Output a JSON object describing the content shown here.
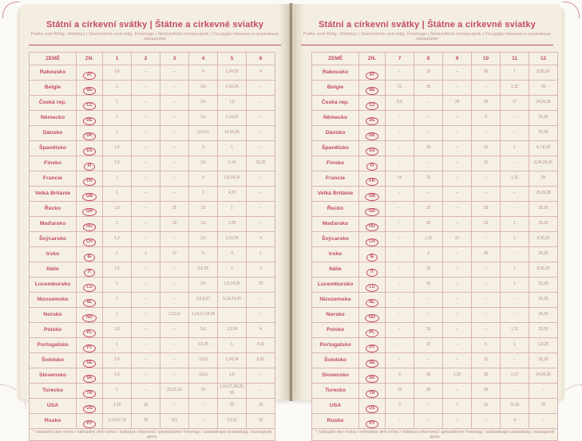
{
  "page": {
    "title": "Státní a církevní svátky | Štátne a cirkevné sviatky",
    "subtitle": "Public and Relig. Holidays | Gesetzliche und relig. Feiertage | Nemzetközi ünnepnapok | Государственные и церковные праздники",
    "footnote": "* náhradní den volna / náhradný deň voľna / holidays observed / gesetzlicher Feiertag / szabadnapi szabadság / выходной день"
  },
  "table_left": {
    "headers": [
      "ZEMĚ",
      "ZN.",
      "1",
      "2",
      "3",
      "4",
      "5",
      "6"
    ],
    "rows": [
      {
        "country": "Rakousko",
        "code": "AT",
        "values": [
          "1,6",
          "–",
          "–",
          "6",
          "1,14,25",
          "4"
        ]
      },
      {
        "country": "Belgie",
        "code": "BE",
        "values": [
          "1",
          "–",
          "–",
          "3,6",
          "1,14,25",
          "–"
        ]
      },
      {
        "country": "Česká rep.",
        "code": "CZ",
        "values": [
          "1",
          "–",
          "–",
          "3,6",
          "1,8",
          "–"
        ]
      },
      {
        "country": "Německo",
        "code": "DE",
        "values": [
          "1",
          "–",
          "–",
          "3,6",
          "1,14,25",
          "–"
        ]
      },
      {
        "country": "Dánsko",
        "code": "DK",
        "values": [
          "1",
          "–",
          "–",
          "2,3,5,6",
          "14,24,25",
          "–"
        ]
      },
      {
        "country": "Španělsko",
        "code": "ES",
        "values": [
          "1,6",
          "–",
          "–",
          "3",
          "1",
          "–"
        ]
      },
      {
        "country": "Finsko",
        "code": "FI",
        "values": [
          "1,6",
          "–",
          "–",
          "3,6",
          "1,14",
          "19,20"
        ]
      },
      {
        "country": "Francie",
        "code": "FR",
        "values": [
          "1",
          "–",
          "–",
          "6",
          "1,8,14,25",
          "–"
        ]
      },
      {
        "country": "Velká Británie",
        "code": "GB",
        "values": [
          "1",
          "–",
          "–",
          "3",
          "4,25",
          "–"
        ]
      },
      {
        "country": "Řecko",
        "code": "GR",
        "values": [
          "1,6",
          "–",
          "25",
          "13",
          "1",
          "–"
        ]
      },
      {
        "country": "Maďarsko",
        "code": "HU",
        "values": [
          "1",
          "–",
          "15",
          "3,6",
          "1,25",
          "–"
        ]
      },
      {
        "country": "Švýcarsko",
        "code": "CH",
        "values": [
          "1,2",
          "–",
          "–",
          "3,6",
          "1,14,25",
          "4"
        ]
      },
      {
        "country": "Irsko",
        "code": "IE",
        "values": [
          "1",
          "2",
          "17",
          "6",
          "4",
          "1"
        ]
      },
      {
        "country": "Itálie",
        "code": "IT",
        "values": [
          "1,6",
          "–",
          "–",
          "5,6,25",
          "1",
          "2"
        ]
      },
      {
        "country": "Lucembursko",
        "code": "LU",
        "values": [
          "1",
          "–",
          "–",
          "3,6",
          "1,9,14,25",
          "23"
        ]
      },
      {
        "country": "Nizozemsko",
        "code": "NL",
        "values": [
          "1",
          "–",
          "–",
          "3,5,6,27",
          "5,14,24,25",
          "–"
        ]
      },
      {
        "country": "Norsko",
        "code": "NO",
        "values": [
          "1",
          "–",
          "2,3,5,6",
          "1,14,17,24,25",
          "–",
          "–"
        ]
      },
      {
        "country": "Polsko",
        "code": "PL",
        "values": [
          "1,6",
          "–",
          "–",
          "5,6",
          "1,3,24",
          "4"
        ]
      },
      {
        "country": "Portugalsko",
        "code": "PT",
        "values": [
          "1",
          "–",
          "–",
          "3,5,25",
          "1",
          "4,10"
        ]
      },
      {
        "country": "Švédsko",
        "code": "SE",
        "values": [
          "1,6",
          "–",
          "–",
          "3,5,6",
          "1,14,24",
          "6,20"
        ]
      },
      {
        "country": "Slovensko",
        "code": "SK",
        "values": [
          "1,6",
          "–",
          "–",
          "3,5,6",
          "1,8",
          "–"
        ]
      },
      {
        "country": "Turecko",
        "code": "TR",
        "values": [
          "1",
          "–",
          "20,21,22",
          "23",
          "1,19,27,28,29,30",
          "–"
        ]
      },
      {
        "country": "USA",
        "code": "US",
        "values": [
          "1,19",
          "16",
          "–",
          "–",
          "25",
          "19"
        ]
      },
      {
        "country": "Rusko",
        "code": "РУ",
        "values": [
          "1,2,5,6,7,8",
          "23",
          "8,9",
          "–",
          "1,9,11",
          "12"
        ]
      }
    ]
  },
  "table_right": {
    "headers": [
      "ZEMĚ",
      "ZN.",
      "7",
      "8",
      "9",
      "10",
      "11",
      "12"
    ],
    "rows": [
      {
        "country": "Rakousko",
        "code": "AT",
        "values": [
          "–",
          "15",
          "–",
          "26",
          "1",
          "8,25,26"
        ]
      },
      {
        "country": "Belgie",
        "code": "BE",
        "values": [
          "21",
          "15",
          "–",
          "–",
          "1,11",
          "25"
        ]
      },
      {
        "country": "Česká rep.",
        "code": "CZ",
        "values": [
          "5,6",
          "–",
          "28",
          "28",
          "17",
          "24,25,26"
        ]
      },
      {
        "country": "Německo",
        "code": "DE",
        "values": [
          "–",
          "–",
          "–",
          "3",
          "–",
          "25,26"
        ]
      },
      {
        "country": "Dánsko",
        "code": "DK",
        "values": [
          "–",
          "–",
          "–",
          "–",
          "–",
          "25,26"
        ]
      },
      {
        "country": "Španělsko",
        "code": "ES",
        "values": [
          "–",
          "15",
          "–",
          "12",
          "1",
          "6,7,8,25"
        ]
      },
      {
        "country": "Finsko",
        "code": "FI",
        "values": [
          "–",
          "–",
          "–",
          "31",
          "–",
          "6,24,25,26"
        ]
      },
      {
        "country": "Francie",
        "code": "FR",
        "values": [
          "14",
          "15",
          "–",
          "–",
          "1,11",
          "25"
        ]
      },
      {
        "country": "Velká Británie",
        "code": "GB",
        "values": [
          "–",
          "–",
          "–",
          "–",
          "–",
          "25,26,28"
        ]
      },
      {
        "country": "Řecko",
        "code": "GR",
        "values": [
          "–",
          "15",
          "–",
          "28",
          "–",
          "25,26"
        ]
      },
      {
        "country": "Maďarsko",
        "code": "HU",
        "values": [
          "–",
          "20",
          "–",
          "23",
          "1",
          "25,26"
        ]
      },
      {
        "country": "Švýcarsko",
        "code": "CH",
        "values": [
          "–",
          "1,15",
          "21",
          "–",
          "1",
          "8,25,26"
        ]
      },
      {
        "country": "Irsko",
        "code": "IE",
        "values": [
          "–",
          "3",
          "–",
          "26",
          "–",
          "25,26"
        ]
      },
      {
        "country": "Itálie",
        "code": "IT",
        "values": [
          "–",
          "15",
          "–",
          "–",
          "1",
          "8,25,26"
        ]
      },
      {
        "country": "Lucembursko",
        "code": "LU",
        "values": [
          "–",
          "15",
          "–",
          "–",
          "1",
          "25,26"
        ]
      },
      {
        "country": "Nizozemsko",
        "code": "NL",
        "values": [
          "–",
          "–",
          "–",
          "–",
          "–",
          "25,26"
        ]
      },
      {
        "country": "Norsko",
        "code": "NO",
        "values": [
          "–",
          "–",
          "–",
          "–",
          "–",
          "25,26"
        ]
      },
      {
        "country": "Polsko",
        "code": "PL",
        "values": [
          "–",
          "15",
          "–",
          "–",
          "1,11",
          "25,26"
        ]
      },
      {
        "country": "Portugalsko",
        "code": "PT",
        "values": [
          "–",
          "15",
          "–",
          "5",
          "1",
          "1,8,25"
        ]
      },
      {
        "country": "Švédsko",
        "code": "SE",
        "values": [
          "–",
          "–",
          "–",
          "31",
          "–",
          "25,26"
        ]
      },
      {
        "country": "Slovensko",
        "code": "SK",
        "values": [
          "5",
          "29",
          "1,15",
          "28",
          "1,17",
          "24,25,26"
        ]
      },
      {
        "country": "Turecko",
        "code": "TR",
        "values": [
          "15",
          "30",
          "–",
          "29",
          "–",
          "–"
        ]
      },
      {
        "country": "USA",
        "code": "US",
        "values": [
          "3",
          "–",
          "7",
          "12",
          "11,26",
          "25"
        ]
      },
      {
        "country": "Rusko",
        "code": "РУ",
        "values": [
          "–",
          "–",
          "–",
          "–",
          "4",
          "–"
        ]
      }
    ]
  },
  "colors": {
    "accent": "#c14b64",
    "value_text": "#b08c8a",
    "grid": "#d9b4ba",
    "paper": "#f4eee0"
  }
}
